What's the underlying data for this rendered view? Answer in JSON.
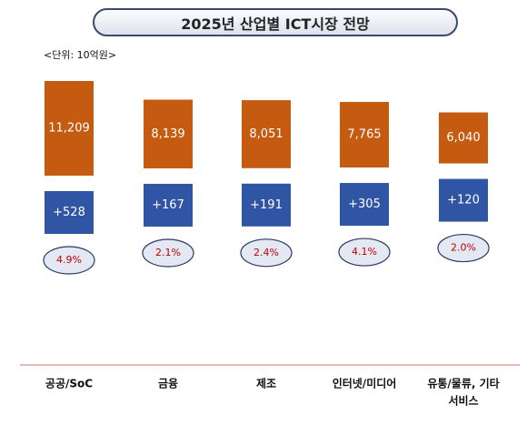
{
  "title": "2025년 산업별 ICT시장 전망",
  "unit_label": "<단위: 10억원>",
  "colors": {
    "market_bar": "#c55a11",
    "increase_bar": "#2f55a4",
    "growth_text": "#c00000"
  },
  "chart_data": {
    "type": "bar",
    "title": "2025년 산업별 ICT시장 전망",
    "unit": "10억원",
    "categories": [
      [
        "공공/SoC"
      ],
      [
        "금융"
      ],
      [
        "제조"
      ],
      [
        "인터넷/미디어"
      ],
      [
        "유통/물류, 기타",
        "서비스"
      ]
    ],
    "series": [
      {
        "values": [
          11209,
          8139,
          8051,
          7765,
          6040
        ],
        "labels": [
          "11,209",
          "8,139",
          "8,051",
          "7,765",
          "6,040"
        ]
      },
      {
        "values": [
          528,
          167,
          191,
          305,
          120
        ],
        "labels": [
          "+528",
          "+167",
          "+191",
          "+305",
          "+120"
        ]
      },
      {
        "values": [
          4.9,
          2.1,
          2.4,
          4.1,
          2.0
        ],
        "labels": [
          "4.9%",
          "2.1%",
          "2.4%",
          "4.1%",
          "2.0%"
        ]
      }
    ]
  }
}
